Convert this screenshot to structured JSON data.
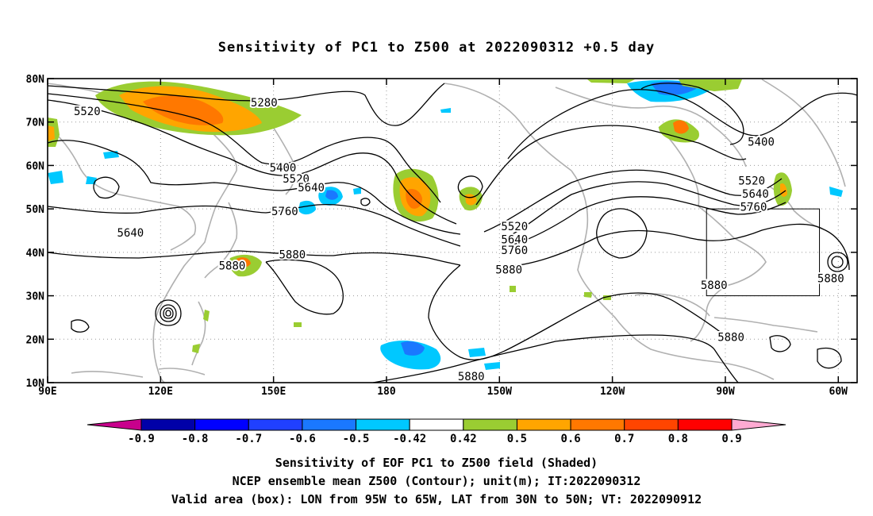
{
  "title": "Sensitivity of PC1 to Z500 at 2022090312 +0.5 day",
  "lat_ticks": [
    "80N",
    "70N",
    "60N",
    "50N",
    "40N",
    "30N",
    "20N",
    "10N"
  ],
  "lon_ticks": [
    "90E",
    "120E",
    "150E",
    "180",
    "150W",
    "120W",
    "90W",
    "60W"
  ],
  "contour_labels": [
    {
      "text": "5280",
      "lon": 147.5,
      "lat": 74.5
    },
    {
      "text": "5520",
      "lon": 100.5,
      "lat": 72.5
    },
    {
      "text": "5400",
      "lon": 152.5,
      "lat": 59.5
    },
    {
      "text": "5520",
      "lon": 156.0,
      "lat": 57.0
    },
    {
      "text": "5640",
      "lon": 160.0,
      "lat": 55.0
    },
    {
      "text": "5760",
      "lon": 153.0,
      "lat": 49.5
    },
    {
      "text": "5640",
      "lon": 112.0,
      "lat": 44.5
    },
    {
      "text": "5880",
      "lon": 139.0,
      "lat": 37.0
    },
    {
      "text": "5880",
      "lon": 155.0,
      "lat": 39.5
    },
    {
      "text": "5520",
      "lon": -146.0,
      "lat": 46.0
    },
    {
      "text": "5640",
      "lon": -146.0,
      "lat": 43.0
    },
    {
      "text": "5760",
      "lon": -146.0,
      "lat": 40.5
    },
    {
      "text": "5880",
      "lon": -147.5,
      "lat": 36.0
    },
    {
      "text": "5880",
      "lon": -157.5,
      "lat": 11.5
    },
    {
      "text": "5400",
      "lon": -80.5,
      "lat": 65.5
    },
    {
      "text": "5520",
      "lon": -83.0,
      "lat": 56.5
    },
    {
      "text": "5640",
      "lon": -82.0,
      "lat": 53.5
    },
    {
      "text": "5760",
      "lon": -82.5,
      "lat": 50.5
    },
    {
      "text": "5880",
      "lon": -93.0,
      "lat": 32.5
    },
    {
      "text": "5880",
      "lon": -88.5,
      "lat": 20.5
    },
    {
      "text": "5880",
      "lon": -62.0,
      "lat": 34.0
    }
  ],
  "colorbar": {
    "labels": [
      "-0.9",
      "-0.8",
      "-0.7",
      "-0.6",
      "-0.5",
      "-0.42",
      "0.42",
      "0.5",
      "0.6",
      "0.7",
      "0.8",
      "0.9"
    ],
    "colors": [
      "#0000a8",
      "#0000ff",
      "#2040ff",
      "#1a78ff",
      "#00c8ff",
      "#ffffff",
      "#9acd32",
      "#ffa500",
      "#ff7800",
      "#ff4500",
      "#ff0000"
    ],
    "low_end_color": "#c8008c",
    "high_end_color": "#ffaad2"
  },
  "valid_box": {
    "lon_min": -95,
    "lon_max": -65,
    "lat_min": 30,
    "lat_max": 50
  },
  "caption": [
    "Sensitivity of EOF PC1 to Z500 field (Shaded)",
    "NCEP ensemble mean Z500 (Contour); unit(m); IT:2022090312",
    "Valid area (box): LON from 95W to 65W, LAT from 30N to 50N; VT: 2022090912"
  ]
}
